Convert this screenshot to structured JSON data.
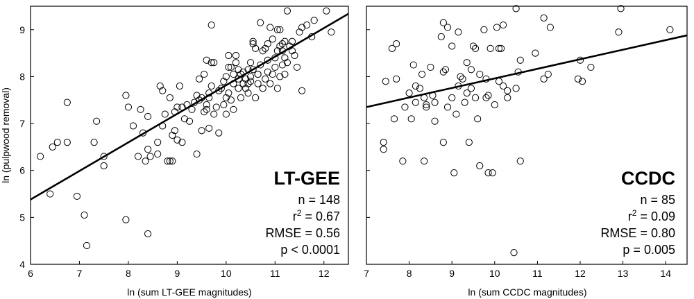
{
  "chart_data": [
    {
      "type": "scatter",
      "title": "",
      "panel_label": "LT-GEE",
      "xlabel": "ln (sum LT-GEE magnitudes)",
      "ylabel": "ln (pulpwood removal)",
      "xlim": [
        6,
        12.5
      ],
      "ylim": [
        4,
        9.5
      ],
      "xticks": [
        6,
        7,
        8,
        9,
        10,
        11,
        12
      ],
      "yticks": [
        4,
        5,
        6,
        7,
        8,
        9
      ],
      "grid": false,
      "stats": {
        "n": "n = 148",
        "r2_prefix": "r",
        "r2_sup": "2",
        "r2_suffix": " = 0.67",
        "rmse": "RMSE = 0.56",
        "p": "p < 0.0001"
      },
      "fit": {
        "x": [
          6.0,
          12.5
        ],
        "y": [
          5.38,
          9.34
        ]
      },
      "points": [
        [
          6.2,
          6.3
        ],
        [
          6.4,
          5.5
        ],
        [
          6.45,
          6.5
        ],
        [
          6.55,
          6.6
        ],
        [
          6.75,
          6.6
        ],
        [
          6.75,
          7.45
        ],
        [
          6.95,
          5.45
        ],
        [
          7.1,
          5.05
        ],
        [
          7.15,
          4.4
        ],
        [
          7.3,
          6.6
        ],
        [
          7.35,
          7.05
        ],
        [
          7.5,
          6.1
        ],
        [
          7.5,
          6.3
        ],
        [
          7.95,
          7.6
        ],
        [
          7.95,
          4.95
        ],
        [
          8.0,
          7.35
        ],
        [
          8.1,
          6.95
        ],
        [
          8.2,
          6.3
        ],
        [
          8.25,
          7.3
        ],
        [
          8.3,
          6.8
        ],
        [
          8.35,
          6.2
        ],
        [
          8.4,
          7.15
        ],
        [
          8.4,
          6.45
        ],
        [
          8.4,
          4.65
        ],
        [
          8.45,
          6.3
        ],
        [
          8.6,
          6.35
        ],
        [
          8.6,
          6.6
        ],
        [
          8.65,
          7.8
        ],
        [
          8.7,
          6.95
        ],
        [
          8.7,
          7.7
        ],
        [
          8.75,
          7.2
        ],
        [
          8.8,
          6.2
        ],
        [
          8.85,
          7.55
        ],
        [
          8.85,
          6.2
        ],
        [
          8.9,
          6.2
        ],
        [
          8.9,
          6.75
        ],
        [
          8.95,
          7.25
        ],
        [
          8.95,
          6.85
        ],
        [
          9.0,
          7.35
        ],
        [
          9.0,
          6.65
        ],
        [
          9.05,
          7.8
        ],
        [
          9.1,
          6.6
        ],
        [
          9.1,
          7.35
        ],
        [
          9.15,
          7.1
        ],
        [
          9.2,
          7.4
        ],
        [
          9.3,
          7.3
        ],
        [
          9.35,
          7.45
        ],
        [
          9.4,
          6.35
        ],
        [
          9.4,
          7.6
        ],
        [
          9.45,
          7.5
        ],
        [
          9.5,
          6.85
        ],
        [
          9.5,
          7.55
        ],
        [
          9.55,
          8.05
        ],
        [
          9.6,
          7.3
        ],
        [
          9.6,
          7.4
        ],
        [
          9.65,
          6.9
        ],
        [
          9.65,
          7.55
        ],
        [
          9.65,
          7.65
        ],
        [
          9.7,
          8.3
        ],
        [
          9.7,
          7.8
        ],
        [
          9.7,
          9.1
        ],
        [
          9.75,
          8.3
        ],
        [
          9.75,
          7.2
        ],
        [
          9.8,
          7.35
        ],
        [
          9.85,
          6.8
        ],
        [
          9.9,
          7.75
        ],
        [
          9.95,
          7.4
        ],
        [
          10.0,
          8.0
        ],
        [
          10.0,
          7.55
        ],
        [
          10.0,
          7.2
        ],
        [
          10.05,
          8.2
        ],
        [
          10.05,
          8.45
        ],
        [
          10.1,
          7.5
        ],
        [
          10.15,
          8.05
        ],
        [
          10.15,
          7.3
        ],
        [
          10.2,
          8.3
        ],
        [
          10.2,
          8.45
        ],
        [
          10.25,
          7.95
        ],
        [
          10.25,
          7.75
        ],
        [
          10.3,
          8.05
        ],
        [
          10.3,
          7.55
        ],
        [
          10.35,
          7.85
        ],
        [
          10.4,
          7.95
        ],
        [
          10.4,
          7.75
        ],
        [
          10.45,
          8.15
        ],
        [
          10.45,
          7.65
        ],
        [
          10.5,
          8.3
        ],
        [
          10.5,
          7.9
        ],
        [
          10.55,
          8.7
        ],
        [
          10.55,
          8.75
        ],
        [
          10.55,
          8.15
        ],
        [
          10.6,
          8.6
        ],
        [
          10.6,
          7.55
        ],
        [
          10.65,
          8.05
        ],
        [
          10.7,
          8.25
        ],
        [
          10.7,
          9.15
        ],
        [
          10.75,
          7.75
        ],
        [
          10.75,
          8.55
        ],
        [
          10.8,
          8.6
        ],
        [
          10.8,
          7.95
        ],
        [
          10.85,
          8.1
        ],
        [
          10.9,
          7.85
        ],
        [
          10.9,
          9.05
        ],
        [
          10.95,
          8.8
        ],
        [
          11.0,
          8.2
        ],
        [
          11.0,
          8.4
        ],
        [
          11.05,
          7.75
        ],
        [
          11.1,
          8.65
        ],
        [
          11.1,
          8.0
        ],
        [
          11.1,
          9.0
        ],
        [
          11.15,
          8.7
        ],
        [
          11.15,
          8.55
        ],
        [
          11.15,
          8.25
        ],
        [
          11.2,
          8.75
        ],
        [
          11.2,
          8.05
        ],
        [
          11.25,
          8.3
        ],
        [
          11.25,
          9.4
        ],
        [
          11.3,
          8.65
        ],
        [
          11.35,
          8.75
        ],
        [
          11.4,
          8.45
        ],
        [
          11.45,
          8.2
        ],
        [
          11.5,
          8.95
        ],
        [
          11.55,
          7.7
        ],
        [
          11.55,
          9.05
        ],
        [
          11.65,
          9.1
        ],
        [
          11.75,
          8.85
        ],
        [
          11.8,
          9.2
        ],
        [
          12.05,
          9.4
        ],
        [
          12.15,
          8.95
        ],
        [
          9.6,
          8.35
        ],
        [
          9.95,
          7.9
        ],
        [
          10.15,
          7.85
        ],
        [
          10.35,
          8.1
        ],
        [
          10.5,
          8.0
        ],
        [
          10.65,
          7.85
        ],
        [
          10.85,
          8.35
        ],
        [
          10.95,
          8.05
        ],
        [
          11.05,
          8.55
        ],
        [
          11.2,
          8.4
        ],
        [
          9.25,
          7.05
        ],
        [
          9.55,
          7.25
        ],
        [
          9.85,
          7.7
        ],
        [
          10.05,
          7.65
        ],
        [
          10.25,
          8.15
        ],
        [
          10.45,
          7.85
        ],
        [
          10.65,
          8.05
        ],
        [
          10.85,
          8.7
        ],
        [
          11.05,
          9.0
        ],
        [
          11.35,
          8.55
        ],
        [
          9.45,
          7.95
        ],
        [
          10.1,
          8.2
        ]
      ]
    },
    {
      "type": "scatter",
      "title": "",
      "panel_label": "CCDC",
      "xlabel": "ln (sum CCDC magnitudes)",
      "ylabel": "",
      "xlim": [
        7,
        14.5
      ],
      "ylim": [
        4,
        9.5
      ],
      "xticks": [
        7,
        8,
        9,
        10,
        11,
        12,
        13,
        14
      ],
      "yticks": [
        4,
        5,
        6,
        7,
        8,
        9
      ],
      "grid": false,
      "stats": {
        "n": "n = 85",
        "r2_prefix": "r",
        "r2_sup": "2",
        "r2_suffix": " = 0.09",
        "rmse": "RMSE = 0.80",
        "p": "p = 0.005"
      },
      "fit": {
        "x": [
          7.0,
          14.5
        ],
        "y": [
          7.35,
          8.88
        ]
      },
      "points": [
        [
          7.4,
          6.45
        ],
        [
          7.4,
          6.6
        ],
        [
          7.45,
          7.9
        ],
        [
          7.6,
          8.6
        ],
        [
          7.65,
          7.1
        ],
        [
          7.7,
          8.7
        ],
        [
          7.7,
          7.95
        ],
        [
          7.85,
          6.2
        ],
        [
          7.9,
          7.35
        ],
        [
          8.0,
          7.65
        ],
        [
          8.05,
          7.1
        ],
        [
          8.1,
          8.25
        ],
        [
          8.15,
          7.45
        ],
        [
          8.15,
          7.8
        ],
        [
          8.3,
          8.05
        ],
        [
          8.35,
          7.55
        ],
        [
          8.35,
          6.2
        ],
        [
          8.4,
          7.4
        ],
        [
          8.4,
          7.35
        ],
        [
          8.5,
          8.2
        ],
        [
          8.6,
          7.45
        ],
        [
          8.75,
          8.85
        ],
        [
          8.8,
          6.6
        ],
        [
          8.8,
          8.1
        ],
        [
          8.8,
          9.15
        ],
        [
          8.85,
          8.15
        ],
        [
          8.9,
          7.35
        ],
        [
          8.9,
          9.05
        ],
        [
          9.0,
          7.55
        ],
        [
          9.0,
          8.65
        ],
        [
          9.05,
          5.95
        ],
        [
          9.1,
          7.2
        ],
        [
          9.15,
          8.95
        ],
        [
          9.15,
          7.8
        ],
        [
          9.2,
          8.0
        ],
        [
          9.25,
          7.95
        ],
        [
          9.3,
          7.45
        ],
        [
          9.35,
          8.3
        ],
        [
          9.35,
          7.65
        ],
        [
          9.4,
          6.6
        ],
        [
          9.45,
          8.15
        ],
        [
          9.45,
          7.75
        ],
        [
          9.5,
          8.65
        ],
        [
          9.55,
          7.55
        ],
        [
          9.55,
          8.6
        ],
        [
          9.6,
          7.1
        ],
        [
          9.65,
          8.05
        ],
        [
          9.75,
          9.0
        ],
        [
          9.8,
          7.95
        ],
        [
          9.8,
          7.55
        ],
        [
          9.85,
          7.6
        ],
        [
          9.9,
          8.6
        ],
        [
          9.95,
          5.95
        ],
        [
          10.0,
          7.4
        ],
        [
          10.05,
          9.05
        ],
        [
          10.1,
          8.6
        ],
        [
          10.1,
          7.9
        ],
        [
          10.15,
          8.6
        ],
        [
          10.2,
          9.1
        ],
        [
          10.2,
          7.8
        ],
        [
          10.3,
          7.7
        ],
        [
          10.45,
          4.25
        ],
        [
          10.5,
          7.75
        ],
        [
          10.5,
          9.45
        ],
        [
          10.55,
          8.1
        ],
        [
          10.6,
          8.35
        ],
        [
          10.6,
          6.2
        ],
        [
          10.95,
          8.5
        ],
        [
          11.15,
          7.95
        ],
        [
          11.15,
          9.25
        ],
        [
          11.25,
          8.05
        ],
        [
          11.3,
          9.05
        ],
        [
          11.95,
          7.95
        ],
        [
          12.0,
          8.35
        ],
        [
          12.05,
          7.9
        ],
        [
          12.25,
          8.2
        ],
        [
          12.9,
          8.95
        ],
        [
          12.95,
          9.45
        ],
        [
          14.1,
          9.0
        ],
        [
          8.6,
          7.05
        ],
        [
          9.65,
          6.1
        ],
        [
          9.85,
          5.95
        ],
        [
          10.3,
          7.55
        ],
        [
          8.25,
          7.75
        ],
        [
          8.55,
          7.6
        ]
      ]
    }
  ]
}
